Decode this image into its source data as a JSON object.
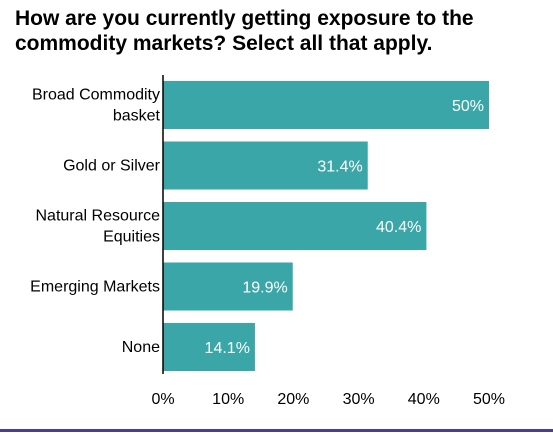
{
  "title": "How are you currently getting exposure to the commodity markets? Select all that apply.",
  "colors": {
    "bar": "#3aa6a8",
    "bar_label": "#ffffff",
    "axis": "#000000",
    "text": "#000000",
    "rule": "#4b3f8f"
  },
  "chart_data": {
    "type": "bar",
    "orientation": "horizontal",
    "title": "How are you currently getting exposure to the commodity markets? Select all that apply.",
    "categories": [
      [
        "Broad Commodity",
        "basket"
      ],
      [
        "Gold or Silver"
      ],
      [
        "Natural Resource",
        "Equities"
      ],
      [
        "Emerging Markets"
      ],
      [
        "None"
      ]
    ],
    "values": [
      50,
      31.4,
      40.4,
      19.9,
      14.1
    ],
    "data_labels": [
      "50%",
      "31.4%",
      "40.4%",
      "19.9%",
      "14.1%"
    ],
    "xlim": [
      0,
      50
    ],
    "ticks": [
      0,
      10,
      20,
      30,
      40,
      50
    ],
    "tick_labels": [
      "0%",
      "10%",
      "20%",
      "30%",
      "40%",
      "50%"
    ],
    "xlabel": "",
    "ylabel": "",
    "grid": false,
    "legend": "none"
  }
}
